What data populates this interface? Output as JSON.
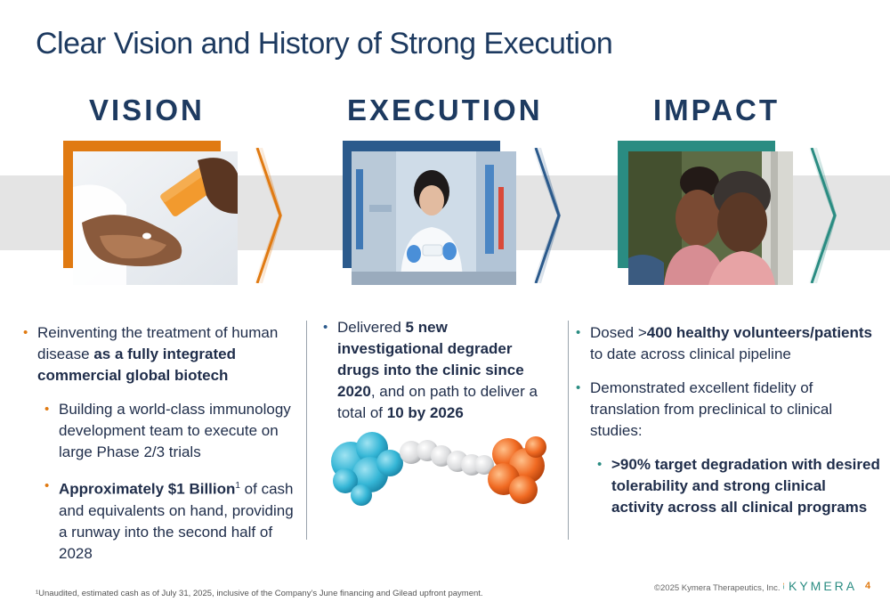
{
  "page": {
    "title": "Clear Vision and History of Strong Execution"
  },
  "columns": [
    {
      "heading": "VISION",
      "accent": "#e07a12",
      "bullets": {
        "b1_pre": "Reinventing the treatment of human disease ",
        "b1_bold": "as a fully integrated commercial global biotech",
        "b2": "Building a world-class immunology development team to execute on large Phase 2/3 trials",
        "b3_bold": "Approximately $1 Billion",
        "b3_sup": "1",
        "b3_post": " of cash and equivalents on hand, providing a runway into the second half of 2028"
      }
    },
    {
      "heading": "EXECUTION",
      "accent": "#2b5a8c",
      "bullets": {
        "b1_pre": "Delivered ",
        "b1_bold": "5 new investigational degrader drugs into the clinic since 2020",
        "b1_mid": ", and on path to deliver a total of ",
        "b1_bold2": "10 by 2026"
      }
    },
    {
      "heading": "IMPACT",
      "accent": "#2a8c82",
      "bullets": {
        "b1_pre": "Dosed >",
        "b1_bold": "400 healthy volunteers/patients",
        "b1_post": " to date across clinical pipeline",
        "b2": "Demonstrated excellent fidelity of translation from preclinical to clinical studies:",
        "b3_bold": ">90% target degradation with desired tolerability and strong clinical activity across all clinical programs"
      }
    }
  ],
  "footer": {
    "footnote": "¹Unaudited, estimated cash as of July 31, 2025, inclusive of the Company’s June financing and Gilead upfront payment.",
    "copyright": "©2025 Kymera Therapeutics, Inc.",
    "logo": "KYMERA",
    "page_number": "4"
  }
}
